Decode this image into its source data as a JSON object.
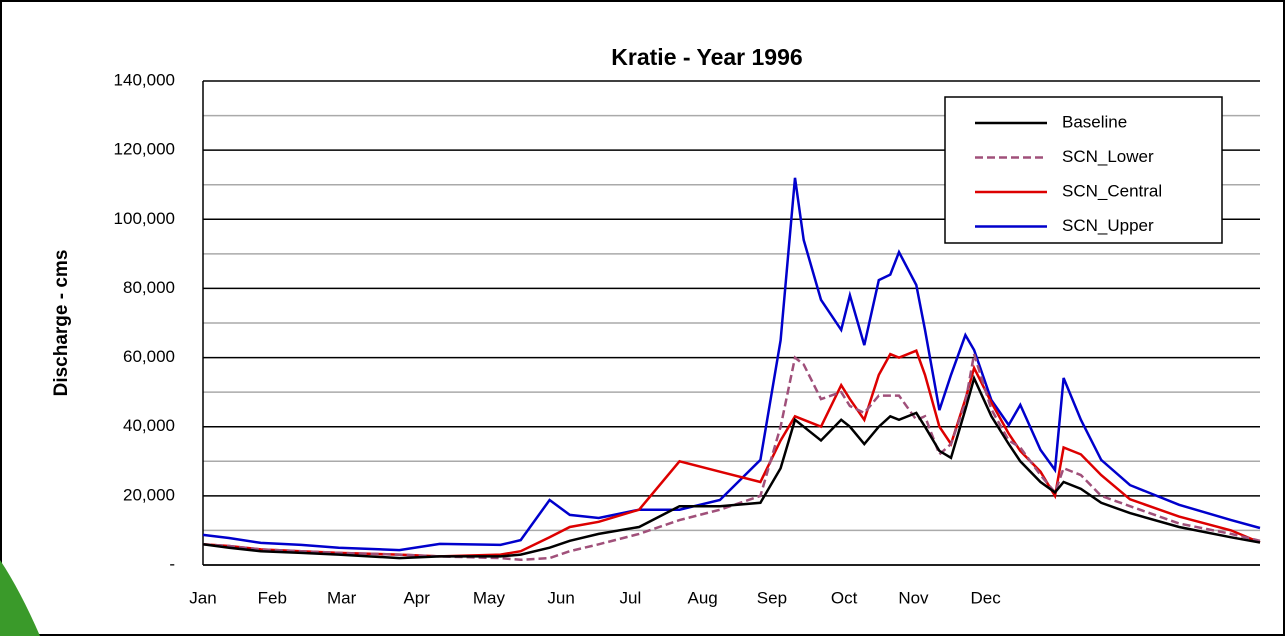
{
  "chart_data": {
    "type": "line",
    "title": "Kratie - Year 1996",
    "ylabel": "Discharge - cms",
    "x": [
      0,
      9,
      20,
      34,
      47,
      68,
      82,
      103,
      110,
      120,
      127,
      137,
      151,
      165,
      179,
      193,
      200,
      205,
      208,
      214,
      221,
      224,
      229,
      234,
      238,
      241,
      247,
      250,
      255,
      259,
      264,
      267,
      273,
      279,
      283,
      290,
      295,
      298,
      304,
      311,
      321,
      338,
      356,
      366
    ],
    "xlim": [
      0,
      366
    ],
    "xticks": [
      {
        "value": 0,
        "label": "Jan"
      },
      {
        "value": 24,
        "label": "Feb"
      },
      {
        "value": 48,
        "label": "Mar"
      },
      {
        "value": 74,
        "label": "Apr"
      },
      {
        "value": 99,
        "label": "May"
      },
      {
        "value": 124,
        "label": "Jun"
      },
      {
        "value": 148,
        "label": "Jul"
      },
      {
        "value": 173,
        "label": "Aug"
      },
      {
        "value": 197,
        "label": "Sep"
      },
      {
        "value": 222,
        "label": "Oct"
      },
      {
        "value": 246,
        "label": "Nov"
      },
      {
        "value": 271,
        "label": "Dec"
      }
    ],
    "ylim": [
      0,
      140000
    ],
    "yticks": [
      {
        "value": 0,
        "label": "-"
      },
      {
        "value": 20000,
        "label": "20,000"
      },
      {
        "value": 40000,
        "label": "40,000"
      },
      {
        "value": 60000,
        "label": "60,000"
      },
      {
        "value": 80000,
        "label": "80,000"
      },
      {
        "value": 100000,
        "label": "100,000"
      },
      {
        "value": 120000,
        "label": "120,000"
      },
      {
        "value": 140000,
        "label": "140,000"
      }
    ],
    "yticks_minor": [
      10000,
      30000,
      50000,
      70000,
      90000,
      110000,
      130000
    ],
    "grid": true,
    "legend": "upper right",
    "series": [
      {
        "name": "Baseline",
        "color": "#000000",
        "line_style": "solid",
        "values": [
          6000,
          5000,
          4000,
          3500,
          3000,
          2000,
          2500,
          2500,
          3000,
          5000,
          7000,
          9000,
          11000,
          17000,
          17000,
          18000,
          28000,
          42000,
          40000,
          36000,
          42000,
          40000,
          35000,
          40000,
          43000,
          42000,
          44000,
          40000,
          33000,
          31000,
          45000,
          54000,
          43000,
          35000,
          30000,
          24000,
          21000,
          24000,
          22000,
          18000,
          15000,
          11000,
          8000,
          6500
        ]
      },
      {
        "name": "SCN_Lower",
        "color": "#a0507a",
        "line_style": "dashed",
        "values": [
          6000,
          5500,
          4500,
          4000,
          3500,
          3000,
          2500,
          2000,
          1500,
          2000,
          4000,
          6000,
          9000,
          13000,
          16000,
          20000,
          40000,
          60000,
          58000,
          48000,
          50000,
          46000,
          44000,
          49000,
          49000,
          49000,
          42000,
          43000,
          32000,
          35000,
          47000,
          61000,
          45000,
          36000,
          34000,
          26000,
          21000,
          28000,
          26000,
          20000,
          17000,
          12000,
          9000,
          7000
        ]
      },
      {
        "name": "SCN_Central",
        "color": "#dd0000",
        "line_style": "solid",
        "values": [
          6000,
          5500,
          4500,
          4000,
          3500,
          3000,
          2500,
          3000,
          4000,
          8000,
          11000,
          12500,
          16000,
          30000,
          27000,
          24000,
          36000,
          43000,
          42000,
          40000,
          52000,
          48000,
          42000,
          55000,
          61000,
          60000,
          62000,
          55000,
          40000,
          35000,
          48000,
          57000,
          47000,
          38000,
          33000,
          27000,
          20000,
          34000,
          32000,
          26000,
          19000,
          14000,
          10000,
          6500
        ]
      },
      {
        "name": "SCN_Upper",
        "color": "#0000cc",
        "line_style": "solid",
        "values": [
          8700,
          7800,
          6400,
          5800,
          5000,
          4300,
          6100,
          5800,
          7200,
          18800,
          14500,
          13600,
          16000,
          16000,
          18800,
          30400,
          65000,
          112000,
          94000,
          76700,
          68000,
          78000,
          63600,
          82400,
          84000,
          90500,
          81000,
          68000,
          44800,
          55000,
          66500,
          62200,
          47700,
          40500,
          46300,
          33300,
          27500,
          54100,
          42000,
          30400,
          23100,
          17400,
          13000,
          10700
        ]
      }
    ]
  }
}
